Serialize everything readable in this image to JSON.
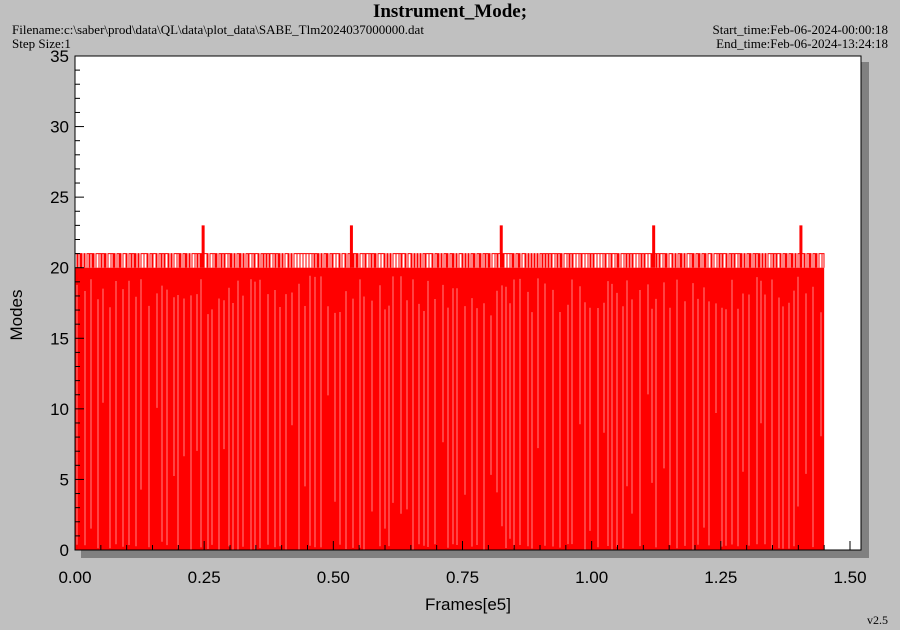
{
  "header": {
    "title": "Instrument_Mode;",
    "filename": "Filename:c:\\saber\\prod\\data\\QL\\data\\plot_data\\SABE_Tlm2024037000000.dat",
    "step_size": "Step Size:1",
    "start_time": "Start_time:Feb-06-2024-00:00:18",
    "end_time": "End_time:Feb-06-2024-13:24:18"
  },
  "footer": {
    "version": "v2.5"
  },
  "colors": {
    "series": "#ff0000",
    "plot_bg": "#ffffff",
    "page_bg": "#c0c0c0",
    "shadow": "#808080"
  },
  "chart_data": {
    "type": "line",
    "title": "Instrument_Mode;",
    "xlabel": "Frames[e5]",
    "ylabel": "Modes",
    "xlim": [
      0.0,
      1.5
    ],
    "ylim": [
      0,
      35
    ],
    "x_ticks": [
      "0.00",
      "0.25",
      "0.50",
      "0.75",
      "1.00",
      "1.25",
      "1.50"
    ],
    "y_ticks": [
      "0",
      "5",
      "10",
      "15",
      "20",
      "25",
      "30",
      "35"
    ],
    "grid": false,
    "legend": "none",
    "series": [
      {
        "baseline_value": 20,
        "high_value": 21,
        "low_value": 0,
        "data_x_range": [
          0.0,
          1.45
        ],
        "spike_value": 23,
        "spikes_x": [
          0.248,
          0.535,
          0.825,
          1.12,
          1.405
        ]
      }
    ]
  }
}
